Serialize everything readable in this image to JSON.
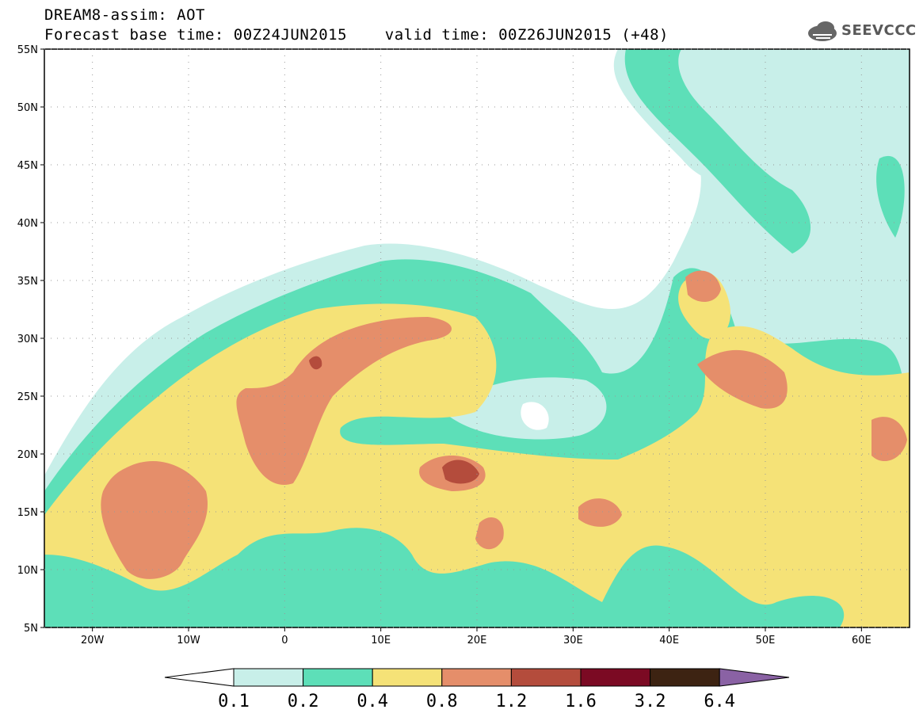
{
  "title": {
    "line1": "DREAM8-assim: AOT",
    "line2": "Forecast base time: 00Z24JUN2015    valid time: 00Z26JUN2015 (+48)"
  },
  "logo": {
    "text": "SEEVCCC",
    "icon": "cloud-icon"
  },
  "map": {
    "lat_range": [
      5,
      55
    ],
    "lon_range": [
      -25,
      65
    ],
    "lat_ticks": [
      "55N",
      "50N",
      "45N",
      "40N",
      "35N",
      "30N",
      "25N",
      "20N",
      "15N",
      "10N",
      "5N"
    ],
    "lon_ticks": [
      "20W",
      "10W",
      "0",
      "10E",
      "20E",
      "30E",
      "40E",
      "50E",
      "60E"
    ],
    "grid": "dotted"
  },
  "colorbar": {
    "labels": [
      "0.1",
      "0.2",
      "0.4",
      "0.8",
      "1.2",
      "1.6",
      "3.2",
      "6.4"
    ],
    "colors": [
      "#ffffff",
      "#c8efe9",
      "#5ddfb8",
      "#f5e277",
      "#e58e6a",
      "#b44c3c",
      "#7b0a23",
      "#3d2312",
      "#8a62a4"
    ]
  }
}
